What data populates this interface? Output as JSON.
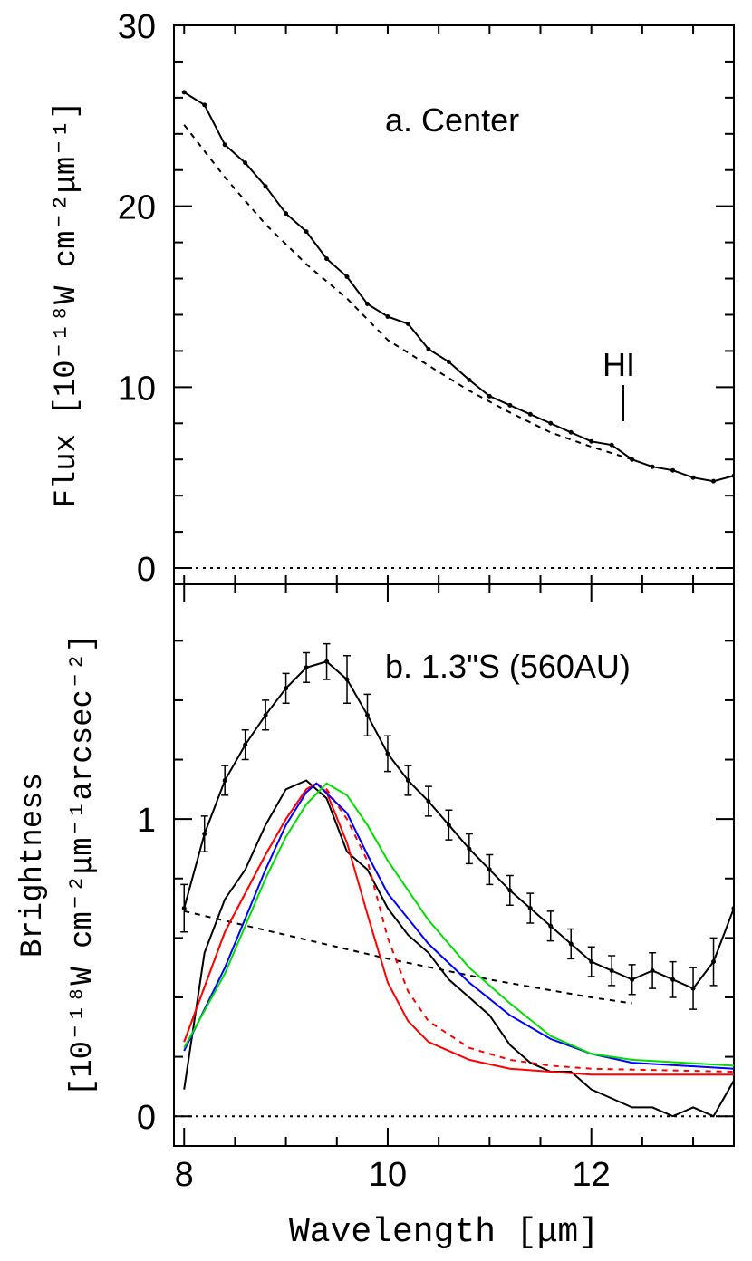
{
  "chart_data": [
    {
      "type": "line",
      "annotation": "a. Center",
      "ylabel": "Flux [10⁻¹⁸W cm⁻²μm⁻¹]",
      "line_label": "HI",
      "xlim": [
        7.9,
        13.4
      ],
      "xtick_marks": [
        8,
        8.5,
        9,
        9.5,
        10,
        10.5,
        11,
        11.5,
        12,
        12.5,
        13
      ],
      "ylim": [
        -0.9,
        30
      ],
      "yticks": [
        0,
        10,
        20,
        30
      ],
      "ytick_marks": [
        2,
        4,
        6,
        8,
        12,
        14,
        16,
        18,
        22,
        24,
        26,
        28
      ],
      "zero_line": true,
      "series": [
        {
          "color": "#000000",
          "style": "solid",
          "points": true,
          "x": [
            8.0,
            8.2,
            8.4,
            8.6,
            8.8,
            9.0,
            9.2,
            9.4,
            9.6,
            9.8,
            10.0,
            10.2,
            10.4,
            10.6,
            10.8,
            11.0,
            11.2,
            11.4,
            11.6,
            11.8,
            12.0,
            12.2,
            12.4,
            12.6,
            12.8,
            13.0,
            13.2,
            13.4
          ],
          "values": [
            26.3,
            25.6,
            23.4,
            22.4,
            21.1,
            19.6,
            18.6,
            17.1,
            16.1,
            14.6,
            13.9,
            13.5,
            12.1,
            11.4,
            10.4,
            9.5,
            9.0,
            8.5,
            8.0,
            7.5,
            7.0,
            6.8,
            6.0,
            5.6,
            5.4,
            5.0,
            4.8,
            5.1
          ]
        },
        {
          "color": "#000000",
          "style": "dashed",
          "x": [
            8.0,
            8.4,
            8.8,
            9.2,
            9.6,
            10.0,
            10.4,
            10.8,
            11.2,
            11.6,
            12.0,
            12.4
          ],
          "values": [
            24.5,
            21.6,
            19.0,
            16.8,
            14.9,
            12.6,
            11.2,
            9.8,
            8.6,
            7.5,
            6.7,
            6.0
          ]
        }
      ]
    },
    {
      "type": "line",
      "annotation": "b. 1.3\"S (560AU)",
      "ylabel": [
        "Brightness",
        "[10⁻¹⁸W cm⁻²μm⁻¹arcsec⁻²]"
      ],
      "xlabel": "Wavelength [μm]",
      "xlim": [
        7.9,
        13.4
      ],
      "xticks": [
        8,
        10,
        12
      ],
      "xtick_marks": [
        8.5,
        9,
        9.5,
        10.5,
        11,
        11.5,
        12.5,
        13
      ],
      "ylim": [
        -0.1,
        1.79
      ],
      "yticks": [
        0,
        1
      ],
      "ytick_marks": [
        0.2,
        0.4,
        0.6,
        0.8,
        1.2,
        1.4,
        1.6
      ],
      "zero_line": true,
      "series": [
        {
          "color": "#000000",
          "style": "solid",
          "points": true,
          "x": [
            8.0,
            8.2,
            8.4,
            8.6,
            8.8,
            9.0,
            9.2,
            9.4,
            9.6,
            9.8,
            10.0,
            10.2,
            10.4,
            10.6,
            10.8,
            11.0,
            11.2,
            11.4,
            11.6,
            11.8,
            12.0,
            12.2,
            12.4,
            12.6,
            12.8,
            13.0,
            13.2,
            13.4
          ],
          "values": [
            0.7,
            0.95,
            1.13,
            1.25,
            1.35,
            1.44,
            1.51,
            1.53,
            1.47,
            1.35,
            1.22,
            1.13,
            1.06,
            0.98,
            0.9,
            0.83,
            0.76,
            0.7,
            0.64,
            0.58,
            0.52,
            0.49,
            0.46,
            0.49,
            0.46,
            0.43,
            0.52,
            0.7
          ],
          "errors": [
            0.08,
            0.06,
            0.05,
            0.05,
            0.05,
            0.05,
            0.05,
            0.06,
            0.08,
            0.07,
            0.06,
            0.05,
            0.05,
            0.05,
            0.05,
            0.05,
            0.05,
            0.05,
            0.05,
            0.05,
            0.05,
            0.05,
            0.05,
            0.06,
            0.06,
            0.07,
            0.08,
            0.1
          ]
        },
        {
          "color": "#000000",
          "style": "solid",
          "x": [
            8.0,
            8.2,
            8.4,
            8.6,
            8.8,
            9.0,
            9.2,
            9.4,
            9.6,
            9.8,
            10.0,
            10.2,
            10.4,
            10.6,
            10.8,
            11.0,
            11.2,
            11.4,
            11.6,
            11.8,
            12.0,
            12.2,
            12.4,
            12.6,
            12.8,
            13.0,
            13.2,
            13.4
          ],
          "values": [
            0.09,
            0.55,
            0.73,
            0.83,
            0.98,
            1.1,
            1.13,
            1.07,
            0.89,
            0.83,
            0.7,
            0.61,
            0.55,
            0.46,
            0.4,
            0.34,
            0.24,
            0.18,
            0.15,
            0.15,
            0.09,
            0.06,
            0.03,
            0.03,
            0.0,
            0.03,
            0.0,
            0.12
          ]
        },
        {
          "color": "#000000",
          "style": "dashed",
          "x": [
            8.0,
            9.0,
            10.0,
            11.0,
            12.0,
            12.4
          ],
          "values": [
            0.69,
            0.61,
            0.53,
            0.46,
            0.4,
            0.38
          ]
        },
        {
          "color": "#ff0000",
          "style": "solid",
          "x": [
            8.0,
            8.4,
            8.8,
            9.0,
            9.2,
            9.3,
            9.4,
            9.6,
            9.8,
            10.0,
            10.2,
            10.4,
            10.8,
            11.2,
            11.6,
            12.0,
            13.4
          ],
          "values": [
            0.25,
            0.62,
            0.88,
            1.0,
            1.1,
            1.12,
            1.09,
            0.92,
            0.68,
            0.45,
            0.32,
            0.25,
            0.19,
            0.16,
            0.15,
            0.14,
            0.14
          ]
        },
        {
          "color": "#ff0000",
          "style": "dashed",
          "x": [
            8.0,
            8.4,
            8.8,
            9.0,
            9.2,
            9.3,
            9.4,
            9.6,
            9.8,
            10.0,
            10.2,
            10.4,
            10.8,
            11.2,
            11.6,
            12.0,
            13.4
          ],
          "values": [
            0.25,
            0.62,
            0.88,
            1.0,
            1.1,
            1.12,
            1.1,
            1.0,
            0.86,
            0.6,
            0.42,
            0.32,
            0.23,
            0.19,
            0.17,
            0.16,
            0.15
          ]
        },
        {
          "color": "#0000ff",
          "style": "solid",
          "x": [
            8.0,
            8.4,
            8.8,
            9.0,
            9.2,
            9.3,
            9.6,
            9.8,
            10.0,
            10.4,
            10.8,
            11.2,
            11.6,
            12.0,
            12.4,
            13.4
          ],
          "values": [
            0.22,
            0.5,
            0.83,
            0.98,
            1.09,
            1.12,
            1.02,
            0.88,
            0.75,
            0.58,
            0.45,
            0.34,
            0.26,
            0.21,
            0.18,
            0.16
          ]
        },
        {
          "color": "#00dd00",
          "style": "solid",
          "x": [
            8.0,
            8.4,
            8.8,
            9.0,
            9.2,
            9.4,
            9.6,
            9.8,
            10.0,
            10.4,
            10.8,
            11.2,
            11.6,
            12.0,
            12.4,
            13.4
          ],
          "values": [
            0.23,
            0.48,
            0.8,
            0.94,
            1.05,
            1.12,
            1.08,
            0.98,
            0.86,
            0.66,
            0.5,
            0.38,
            0.27,
            0.21,
            0.19,
            0.17
          ]
        }
      ]
    }
  ]
}
